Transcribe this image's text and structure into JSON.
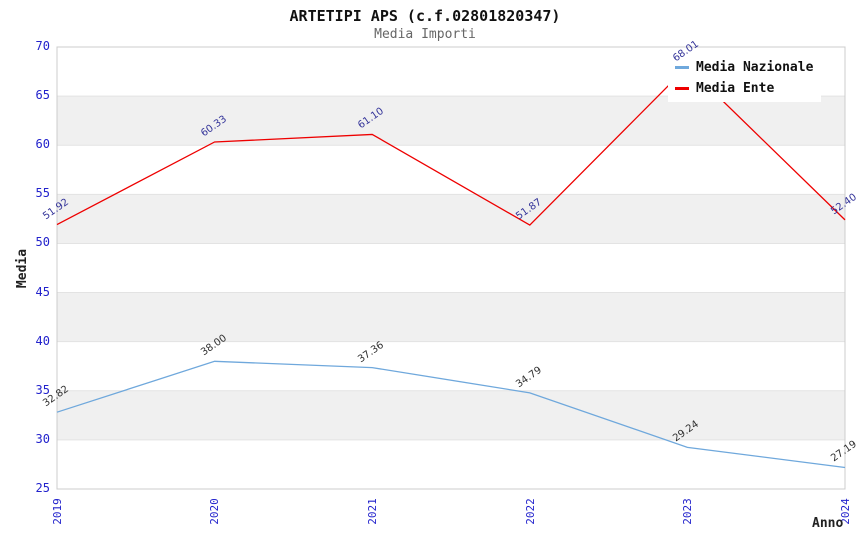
{
  "chart_data": {
    "type": "line",
    "title": "ARTETIPI APS (c.f.02801820347)",
    "subtitle": "Media Importi",
    "xlabel": "Anno",
    "ylabel": "Media",
    "categories": [
      "2019",
      "2020",
      "2021",
      "2022",
      "2023",
      "2024"
    ],
    "ylim": [
      25,
      70
    ],
    "ytick_step": 5,
    "yticks": [
      25,
      30,
      35,
      40,
      45,
      50,
      55,
      60,
      65,
      70
    ],
    "grid": "horizontal, alternating shaded bands",
    "legend_position": "top-right",
    "colors": {
      "tick_label": "#2222cc",
      "band_fill": "#f0f0f0",
      "gridline": "#e3e3e3",
      "plot_border": "#cccccc",
      "title_text": "#111111",
      "subtitle_text": "#666666"
    },
    "series": [
      {
        "name": "Media Nazionale",
        "color": "#6fa8dc",
        "label_color": "#303030",
        "values": [
          32.82,
          38.0,
          37.36,
          34.79,
          29.24,
          27.19
        ],
        "labels": [
          "32.82",
          "38.00",
          "37.36",
          "34.79",
          "29.24",
          "27.19"
        ]
      },
      {
        "name": "Media Ente",
        "color": "#ee0000",
        "label_color": "#333399",
        "values": [
          51.92,
          60.33,
          61.1,
          51.87,
          68.01,
          52.4
        ],
        "labels": [
          "51.92",
          "60.33",
          "61.10",
          "51.87",
          "68.01",
          "52.40"
        ]
      }
    ]
  }
}
